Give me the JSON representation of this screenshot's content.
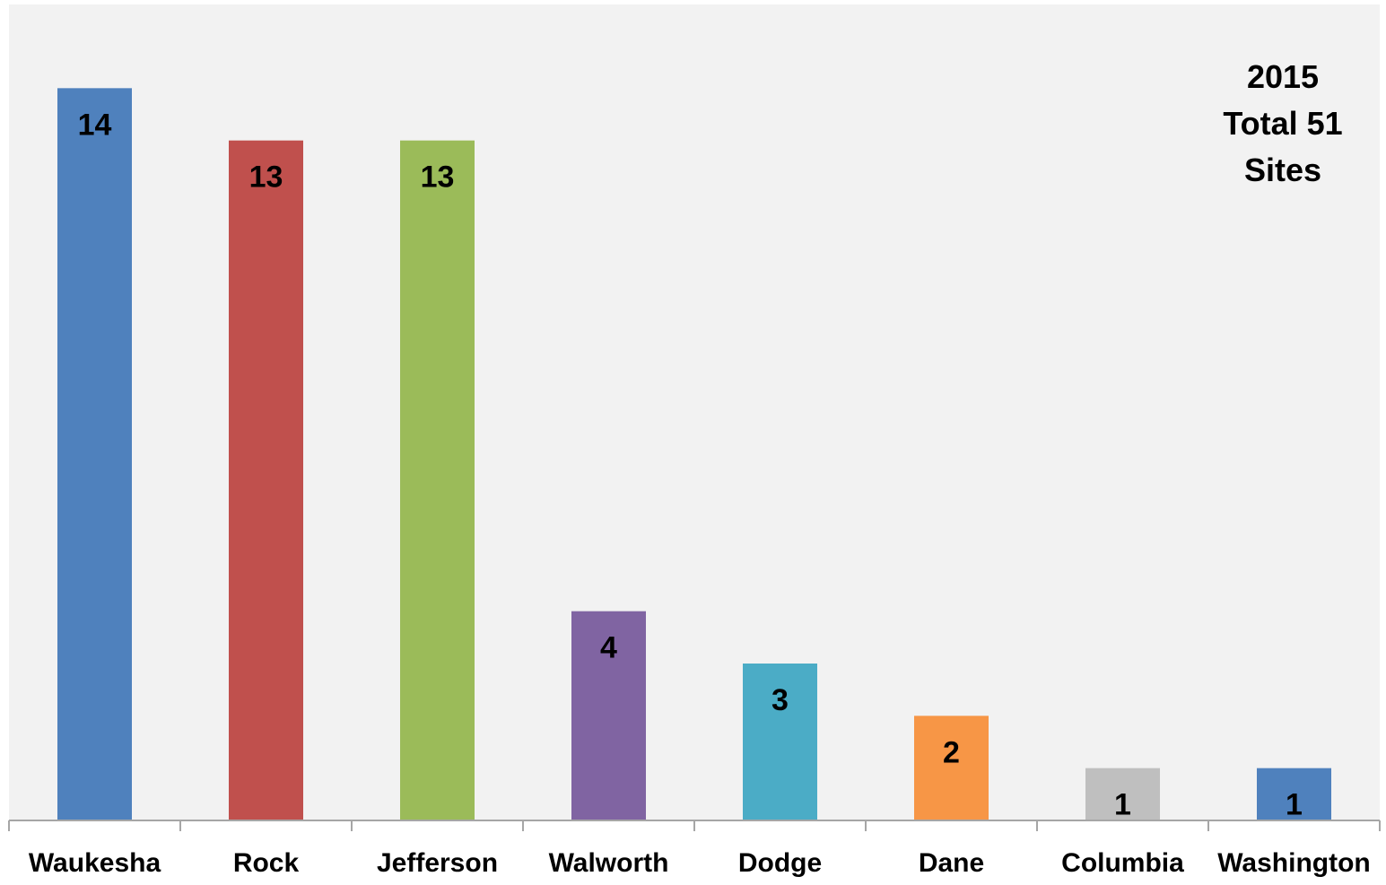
{
  "chart_data": {
    "type": "bar",
    "annotation_lines": [
      "2015",
      "Total 51",
      "Sites"
    ],
    "categories": [
      "Waukesha",
      "Rock",
      "Jefferson",
      "Walworth",
      "Dodge",
      "Dane",
      "Columbia",
      "Washington"
    ],
    "values": [
      14,
      13,
      13,
      4,
      3,
      2,
      1,
      1
    ],
    "bar_colors": [
      "#4F81BD",
      "#C0504D",
      "#9BBB59",
      "#8064A2",
      "#4BACC6",
      "#F79646",
      "#BFBFBF",
      "#4F81BD"
    ],
    "data_labels": [
      "14",
      "13",
      "13",
      "4",
      "3",
      "2",
      "1",
      "1"
    ],
    "plot_background": "#F2F2F2",
    "axis_color": "#A6A6A6",
    "grid": false,
    "legend": false,
    "ylim": [
      0,
      15.6
    ]
  }
}
